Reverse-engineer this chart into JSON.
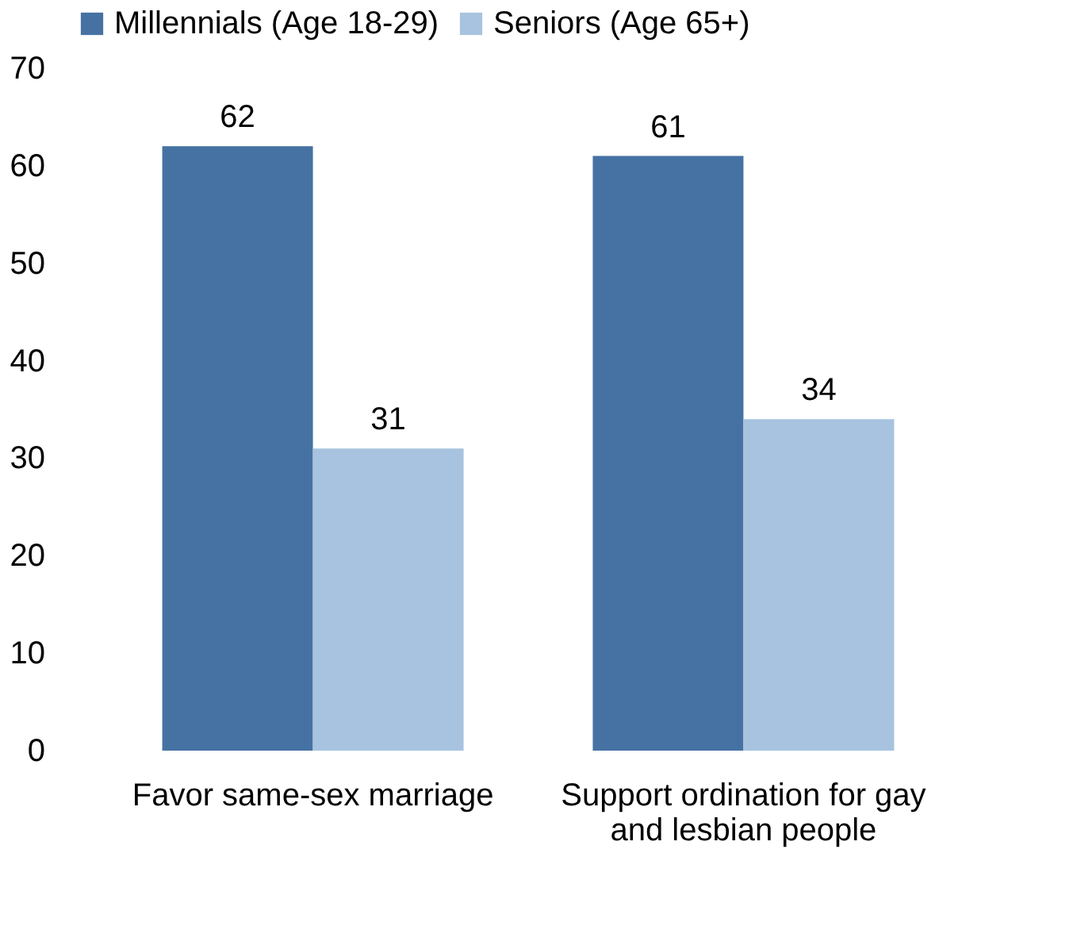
{
  "chart_data": {
    "type": "bar",
    "categories": [
      "Favor same-sex marriage",
      "Support ordination for gay and lesbian people"
    ],
    "series": [
      {
        "name": "Millennials (Age 18-29)",
        "color": "#4672a3",
        "values": [
          62,
          61
        ]
      },
      {
        "name": "Seniors (Age 65+)",
        "color": "#a7c3e0",
        "values": [
          31,
          34
        ]
      }
    ],
    "ylim": [
      0,
      70
    ],
    "yticks": [
      0,
      10,
      20,
      30,
      40,
      50,
      60,
      70
    ],
    "data_labels": true,
    "grid": false,
    "legend": "top"
  }
}
